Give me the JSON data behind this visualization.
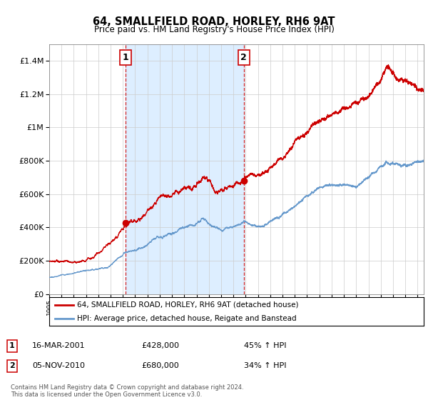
{
  "title": "64, SMALLFIELD ROAD, HORLEY, RH6 9AT",
  "subtitle": "Price paid vs. HM Land Registry's House Price Index (HPI)",
  "legend_line1": "64, SMALLFIELD ROAD, HORLEY, RH6 9AT (detached house)",
  "legend_line2": "HPI: Average price, detached house, Reigate and Banstead",
  "transaction1_label": "1",
  "transaction1_date": "16-MAR-2001",
  "transaction1_price": "£428,000",
  "transaction1_pct": "45% ↑ HPI",
  "transaction1_x": 2001.21,
  "transaction1_y": 428000,
  "transaction2_label": "2",
  "transaction2_date": "05-NOV-2010",
  "transaction2_price": "£680,000",
  "transaction2_pct": "34% ↑ HPI",
  "transaction2_x": 2010.85,
  "transaction2_y": 680000,
  "footer": "Contains HM Land Registry data © Crown copyright and database right 2024.\nThis data is licensed under the Open Government Licence v3.0.",
  "red_color": "#cc0000",
  "blue_color": "#6699cc",
  "shade_color": "#ddeeff",
  "ylim": [
    0,
    1500000
  ],
  "xlim_left": 1995.0,
  "xlim_right": 2025.5
}
